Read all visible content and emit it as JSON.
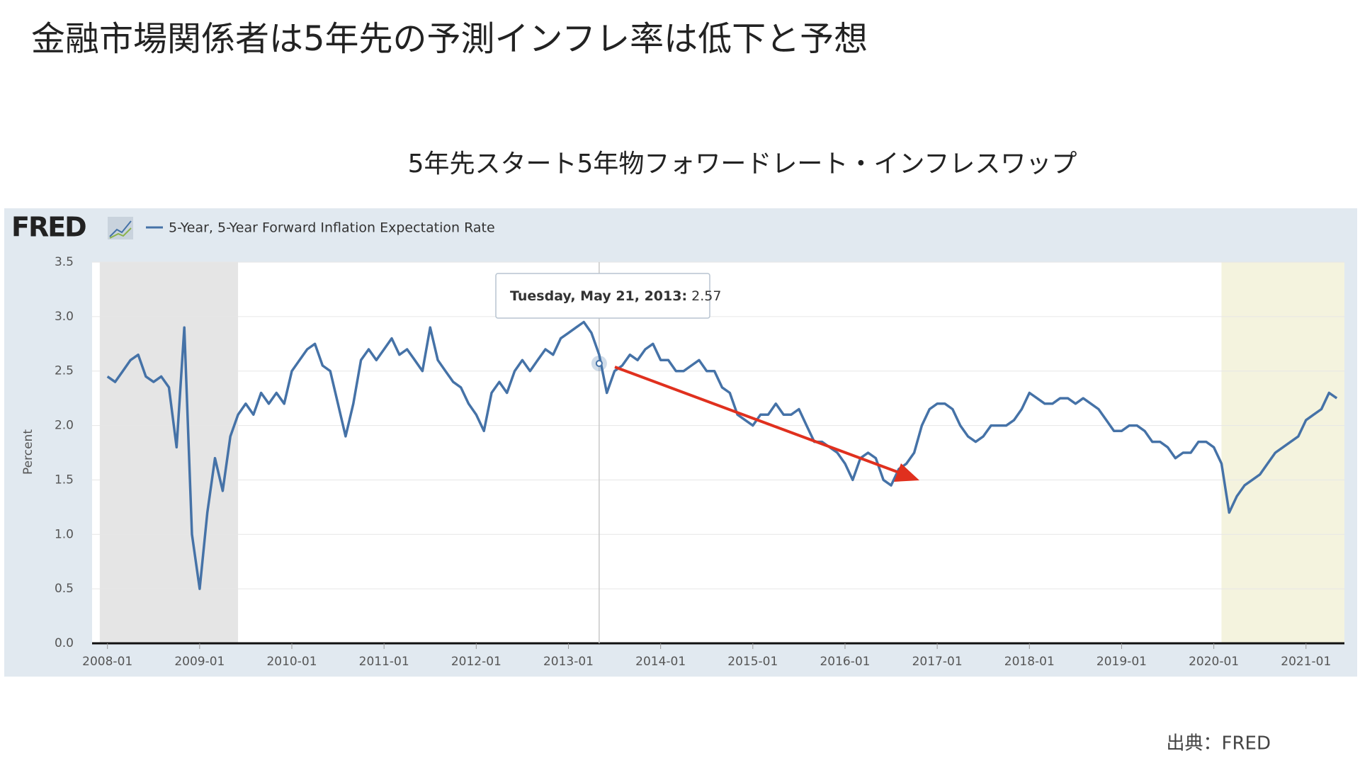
{
  "slide_title": "金融市場関係者は5年先の予測インフレ率は低下と予想",
  "source": "出典：FRED",
  "chart_data": {
    "type": "line",
    "title": "5年先スタート5年物フォワードレート・インフレスワップ",
    "logo": "FRED",
    "y_label": "Percent",
    "x": [
      "2008-01",
      "2008-02",
      "2008-03",
      "2008-04",
      "2008-05",
      "2008-06",
      "2008-07",
      "2008-08",
      "2008-09",
      "2008-10",
      "2008-11",
      "2008-12",
      "2009-01",
      "2009-02",
      "2009-03",
      "2009-04",
      "2009-05",
      "2009-06",
      "2009-07",
      "2009-08",
      "2009-09",
      "2009-10",
      "2009-11",
      "2009-12",
      "2010-01",
      "2010-02",
      "2010-03",
      "2010-04",
      "2010-05",
      "2010-06",
      "2010-07",
      "2010-08",
      "2010-09",
      "2010-10",
      "2010-11",
      "2010-12",
      "2011-01",
      "2011-02",
      "2011-03",
      "2011-04",
      "2011-05",
      "2011-06",
      "2011-07",
      "2011-08",
      "2011-09",
      "2011-10",
      "2011-11",
      "2011-12",
      "2012-01",
      "2012-02",
      "2012-03",
      "2012-04",
      "2012-05",
      "2012-06",
      "2012-07",
      "2012-08",
      "2012-09",
      "2012-10",
      "2012-11",
      "2012-12",
      "2013-01",
      "2013-02",
      "2013-03",
      "2013-04",
      "2013-05",
      "2013-06",
      "2013-07",
      "2013-08",
      "2013-09",
      "2013-10",
      "2013-11",
      "2013-12",
      "2014-01",
      "2014-02",
      "2014-03",
      "2014-04",
      "2014-05",
      "2014-06",
      "2014-07",
      "2014-08",
      "2014-09",
      "2014-10",
      "2014-11",
      "2014-12",
      "2015-01",
      "2015-02",
      "2015-03",
      "2015-04",
      "2015-05",
      "2015-06",
      "2015-07",
      "2015-08",
      "2015-09",
      "2015-10",
      "2015-11",
      "2015-12",
      "2016-01",
      "2016-02",
      "2016-03",
      "2016-04",
      "2016-05",
      "2016-06",
      "2016-07",
      "2016-08",
      "2016-09",
      "2016-10",
      "2016-11",
      "2016-12",
      "2017-01",
      "2017-02",
      "2017-03",
      "2017-04",
      "2017-05",
      "2017-06",
      "2017-07",
      "2017-08",
      "2017-09",
      "2017-10",
      "2017-11",
      "2017-12",
      "2018-01",
      "2018-02",
      "2018-03",
      "2018-04",
      "2018-05",
      "2018-06",
      "2018-07",
      "2018-08",
      "2018-09",
      "2018-10",
      "2018-11",
      "2018-12",
      "2019-01",
      "2019-02",
      "2019-03",
      "2019-04",
      "2019-05",
      "2019-06",
      "2019-07",
      "2019-08",
      "2019-09",
      "2019-10",
      "2019-11",
      "2019-12",
      "2020-01",
      "2020-02",
      "2020-03",
      "2020-04",
      "2020-05",
      "2020-06",
      "2020-07",
      "2020-08",
      "2020-09",
      "2020-10",
      "2020-11",
      "2020-12",
      "2021-01",
      "2021-02",
      "2021-03",
      "2021-04",
      "2021-05"
    ],
    "series": [
      {
        "name": "5-Year, 5-Year Forward Inflation Expectation Rate",
        "color": "#4572a7",
        "values": [
          2.45,
          2.4,
          2.5,
          2.6,
          2.65,
          2.45,
          2.4,
          2.45,
          2.35,
          1.8,
          2.9,
          1.0,
          0.5,
          1.2,
          1.7,
          1.4,
          1.9,
          2.1,
          2.2,
          2.1,
          2.3,
          2.2,
          2.3,
          2.2,
          2.5,
          2.6,
          2.7,
          2.75,
          2.55,
          2.5,
          2.2,
          1.9,
          2.2,
          2.6,
          2.7,
          2.6,
          2.7,
          2.8,
          2.65,
          2.7,
          2.6,
          2.5,
          2.9,
          2.6,
          2.5,
          2.4,
          2.35,
          2.2,
          2.1,
          1.95,
          2.3,
          2.4,
          2.3,
          2.5,
          2.6,
          2.5,
          2.6,
          2.7,
          2.65,
          2.8,
          2.85,
          2.9,
          2.95,
          2.85,
          2.65,
          2.3,
          2.5,
          2.55,
          2.65,
          2.6,
          2.7,
          2.75,
          2.6,
          2.6,
          2.5,
          2.5,
          2.55,
          2.6,
          2.5,
          2.5,
          2.35,
          2.3,
          2.1,
          2.05,
          2.0,
          2.1,
          2.1,
          2.2,
          2.1,
          2.1,
          2.15,
          2.0,
          1.85,
          1.85,
          1.8,
          1.75,
          1.65,
          1.5,
          1.7,
          1.75,
          1.7,
          1.5,
          1.45,
          1.6,
          1.65,
          1.75,
          2.0,
          2.15,
          2.2,
          2.2,
          2.15,
          2.0,
          1.9,
          1.85,
          1.9,
          2.0,
          2.0,
          2.0,
          2.05,
          2.15,
          2.3,
          2.25,
          2.2,
          2.2,
          2.25,
          2.25,
          2.2,
          2.25,
          2.2,
          2.15,
          2.05,
          1.95,
          1.95,
          2.0,
          2.0,
          1.95,
          1.85,
          1.85,
          1.8,
          1.7,
          1.75,
          1.75,
          1.85,
          1.85,
          1.8,
          1.65,
          1.2,
          1.35,
          1.45,
          1.5,
          1.55,
          1.65,
          1.75,
          1.8,
          1.85,
          1.9,
          2.05,
          2.1,
          2.15,
          2.3,
          2.25
        ]
      }
    ],
    "xlim": [
      "2007-11",
      "2021-06"
    ],
    "xticks": [
      "2008-01",
      "2009-01",
      "2010-01",
      "2011-01",
      "2012-01",
      "2013-01",
      "2014-01",
      "2015-01",
      "2016-01",
      "2017-01",
      "2018-01",
      "2019-01",
      "2020-01",
      "2021-01"
    ],
    "ylim": [
      0,
      3.5
    ],
    "yticks": [
      {
        "value": 0,
        "label": "0.0"
      },
      0.5,
      {
        "value": 1,
        "label": "1.0"
      },
      1.5,
      {
        "value": 2,
        "label": "2.0"
      },
      2.5,
      {
        "value": 3,
        "label": "3.0"
      },
      3.5
    ],
    "grid": true,
    "shaded_regions": [
      {
        "start": "2007-12",
        "end": "2009-06",
        "color": "#e5e5e5"
      },
      {
        "start": "2020-02",
        "end": "2021-06",
        "color": "#f4f3de"
      }
    ],
    "tooltip": {
      "label": "Tuesday, May 21, 2013:",
      "value": 2.57,
      "x": "2013-05"
    }
  }
}
